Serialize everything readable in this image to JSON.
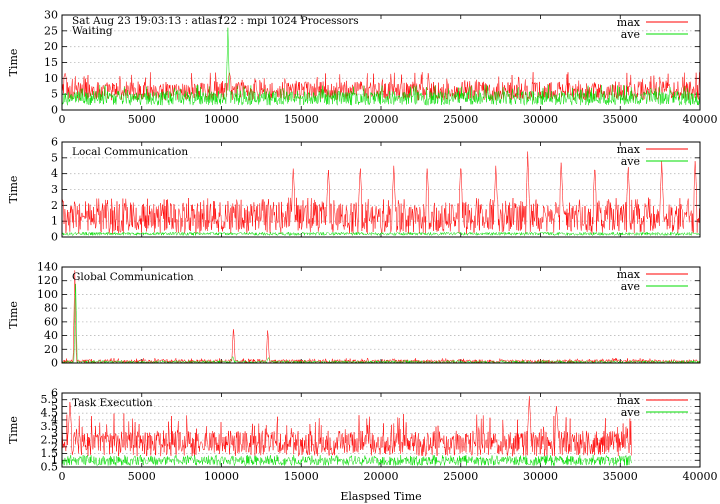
{
  "header": "Sat Aug 23 19:03:13 : atlas122 : mpi 1024 Processors",
  "xlabel": "Elaspsed Time",
  "colors": {
    "max": "#ff0000",
    "ave": "#00dd00",
    "grid": "#bbbbbb"
  },
  "chart_data": [
    {
      "type": "line",
      "title": "Waiting",
      "ylabel": "Time",
      "xlim": [
        0,
        40000
      ],
      "ylim": [
        0,
        30
      ],
      "yticks": [
        "0",
        "5",
        "10",
        "15",
        "20",
        "25",
        "30"
      ],
      "xticks": [
        "0",
        "5000",
        "10000",
        "15000",
        "20000",
        "25000",
        "30000",
        "35000",
        "40000"
      ],
      "legend": "top-right",
      "grid": true,
      "series": [
        {
          "name": "max",
          "color": "#ff0000",
          "x_range": [
            0,
            40000
          ],
          "typical_low": 3,
          "typical_high": 9,
          "spike_max": 12,
          "peaks": [
            [
              200,
              12
            ],
            [
              10500,
              12
            ]
          ]
        },
        {
          "name": "ave",
          "color": "#00dd00",
          "x_range": [
            0,
            40000
          ],
          "typical_low": 1.5,
          "typical_high": 6,
          "spike_max": 8,
          "peaks": [
            [
              10400,
              26
            ]
          ]
        }
      ]
    },
    {
      "type": "line",
      "title": "Local Communication",
      "ylabel": "Time",
      "xlim": [
        0,
        40000
      ],
      "ylim": [
        0,
        6
      ],
      "yticks": [
        "0",
        "1",
        "2",
        "3",
        "4",
        "5",
        "6"
      ],
      "xticks": [],
      "legend": "top-right",
      "grid": true,
      "series": [
        {
          "name": "max",
          "color": "#ff0000",
          "x_range": [
            0,
            40000
          ],
          "typical_low": 0.2,
          "typical_high": 2.2,
          "spike_max": 2.5,
          "peaks": [
            [
              14500,
              4.5
            ],
            [
              16700,
              4.4
            ],
            [
              18700,
              4.5
            ],
            [
              20800,
              4.5
            ],
            [
              22900,
              4.5
            ],
            [
              25000,
              4.7
            ],
            [
              27200,
              4.5
            ],
            [
              29200,
              5.4
            ],
            [
              31300,
              4.9
            ],
            [
              33400,
              4.6
            ],
            [
              35500,
              4.6
            ],
            [
              37600,
              4.8
            ],
            [
              39700,
              5.0
            ]
          ]
        },
        {
          "name": "ave",
          "color": "#00dd00",
          "x_range": [
            0,
            40000
          ],
          "typical_low": 0.1,
          "typical_high": 0.3,
          "spike_max": 0.3,
          "peaks": []
        }
      ]
    },
    {
      "type": "line",
      "title": "Global Communication",
      "ylabel": "Time",
      "xlim": [
        0,
        40000
      ],
      "ylim": [
        0,
        140
      ],
      "yticks": [
        "0",
        "20",
        "40",
        "60",
        "80",
        "100",
        "120",
        "140"
      ],
      "xticks": [],
      "legend": "top-right",
      "grid": true,
      "series": [
        {
          "name": "max",
          "color": "#ff0000",
          "x_range": [
            0,
            40000
          ],
          "typical_low": 0,
          "typical_high": 5,
          "spike_max": 7,
          "peaks": [
            [
              800,
              135
            ],
            [
              10750,
              55
            ],
            [
              12900,
              51
            ]
          ]
        },
        {
          "name": "ave",
          "color": "#00dd00",
          "x_range": [
            0,
            40000
          ],
          "typical_low": 0,
          "typical_high": 3,
          "spike_max": 4,
          "peaks": [
            [
              850,
              130
            ],
            [
              10700,
              10
            ],
            [
              12950,
              8
            ]
          ]
        }
      ]
    },
    {
      "type": "line",
      "title": "Task Execution",
      "ylabel": "Time",
      "xlim": [
        0,
        40000
      ],
      "ylim": [
        0.5,
        6
      ],
      "yticks": [
        "0.5",
        "1",
        "1.5",
        "2",
        "2.5",
        "3",
        "3.5",
        "4",
        "4.5",
        "5",
        "5.5",
        "6"
      ],
      "xticks": [
        "0",
        "5000",
        "10000",
        "15000",
        "20000",
        "25000",
        "30000",
        "35000",
        "40000"
      ],
      "legend": "top-right",
      "grid": true,
      "series": [
        {
          "name": "max",
          "color": "#ff0000",
          "x_range": [
            0,
            35700
          ],
          "typical_low": 1.3,
          "typical_high": 3.2,
          "spike_max": 4.5,
          "peaks": [
            [
              500,
              5.5
            ],
            [
              29300,
              5.8
            ],
            [
              31000,
              5.2
            ]
          ]
        },
        {
          "name": "ave",
          "color": "#00dd00",
          "x_range": [
            0,
            35700
          ],
          "typical_low": 0.6,
          "typical_high": 1.3,
          "spike_max": 1.4,
          "peaks": []
        }
      ]
    }
  ]
}
